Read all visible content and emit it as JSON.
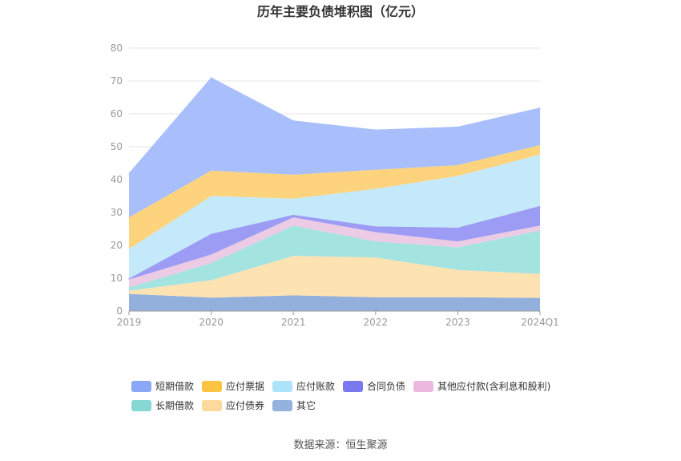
{
  "chart_data": {
    "type": "area",
    "stacked": true,
    "title": "历年主要负债堆积图（亿元）",
    "categories": [
      "2019",
      "2020",
      "2021",
      "2022",
      "2023",
      "2024Q1"
    ],
    "y_ticks": [
      "0",
      "10",
      "20",
      "30",
      "40",
      "50",
      "60",
      "70",
      "80"
    ],
    "ylim": [
      0,
      80
    ],
    "grid": "horizontal",
    "legend_placement": "bottom",
    "series": [
      {
        "name": "其它",
        "color": "#93afdc",
        "values": [
          5.2,
          4.1,
          4.8,
          4.2,
          4.2,
          4.0
        ]
      },
      {
        "name": "应付债券",
        "color": "#fde2b2",
        "values": [
          1.0,
          5.3,
          12.0,
          12.1,
          8.3,
          7.3
        ]
      },
      {
        "name": "长期借款",
        "color": "#a3e3e0",
        "values": [
          1.0,
          5.2,
          9.2,
          4.9,
          6.9,
          13.2
        ]
      },
      {
        "name": "其他应付款(含利息和股利)",
        "color": "#eccbe5",
        "values": [
          2.4,
          2.6,
          2.5,
          2.8,
          1.8,
          1.5
        ]
      },
      {
        "name": "合同负债",
        "color": "#9d9cf5",
        "values": [
          0.3,
          6.3,
          0.8,
          1.8,
          4.2,
          6.0
        ]
      },
      {
        "name": "应付账款",
        "color": "#c4e9fb",
        "values": [
          9.0,
          11.5,
          4.9,
          11.4,
          15.7,
          15.6
        ]
      },
      {
        "name": "应付票据",
        "color": "#fdd37d",
        "values": [
          9.6,
          7.7,
          7.3,
          5.8,
          3.3,
          2.9
        ]
      },
      {
        "name": "短期借款",
        "color": "#a8bffb",
        "values": [
          13.5,
          28.4,
          16.5,
          12.2,
          11.7,
          11.4
        ]
      }
    ],
    "legend": [
      {
        "name": "短期借款",
        "color": "#8aa8f5"
      },
      {
        "name": "应付票据",
        "color": "#fdc443"
      },
      {
        "name": "应付账款",
        "color": "#ade3fb"
      },
      {
        "name": "合同负债",
        "color": "#7a78ee"
      },
      {
        "name": "其他应付款(含利息和股利)",
        "color": "#ebb9e0"
      },
      {
        "name": "长期借款",
        "color": "#86d8d4"
      },
      {
        "name": "应付债券",
        "color": "#fed99e"
      },
      {
        "name": "其它",
        "color": "#94b2dd"
      }
    ],
    "source": "数据来源：恒生聚源"
  }
}
